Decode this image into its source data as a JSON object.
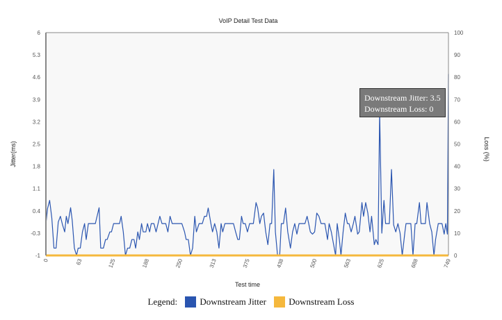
{
  "chart_data": {
    "type": "line",
    "title": "VoIP Detail Test Data",
    "xlabel": "Test time",
    "ylabel": "Jitter(ms)",
    "y2label": "Loss (%)",
    "xlim": [
      0,
      749
    ],
    "ylim": [
      -1,
      6
    ],
    "y2lim": [
      0,
      100
    ],
    "x_ticks": [
      "0",
      "63",
      "125",
      "188",
      "250",
      "313",
      "375",
      "438",
      "500",
      "563",
      "625",
      "688",
      "749"
    ],
    "y_ticks": [
      "-1",
      "-0.3",
      "0.4",
      "1.1",
      "1.8",
      "2.5",
      "3.2",
      "3.9",
      "4.6",
      "5.3",
      "6"
    ],
    "y2_ticks": [
      "0",
      "10",
      "20",
      "30",
      "40",
      "50",
      "60",
      "70",
      "80",
      "90",
      "100"
    ],
    "grid": false,
    "legend_position": "bottom",
    "series": [
      {
        "name": "Downstream Jitter",
        "color": "#2a55b0",
        "axis": "left",
        "points": [
          [
            0,
            0
          ],
          [
            3,
            0.47
          ],
          [
            7,
            0.73
          ],
          [
            11,
            0.18
          ],
          [
            15,
            -0.77
          ],
          [
            19,
            -0.77
          ],
          [
            23,
            0.05
          ],
          [
            27,
            0.23
          ],
          [
            31,
            -0.04
          ],
          [
            35,
            -0.26
          ],
          [
            38,
            0.23
          ],
          [
            41,
            0
          ],
          [
            46,
            0.5
          ],
          [
            49,
            0.1
          ],
          [
            53,
            -0.77
          ],
          [
            57,
            -1
          ],
          [
            60,
            -0.77
          ],
          [
            64,
            -0.77
          ],
          [
            68,
            -0.26
          ],
          [
            72,
            0
          ],
          [
            75,
            -0.5
          ],
          [
            79,
            0
          ],
          [
            92,
            0
          ],
          [
            99,
            0.5
          ],
          [
            102,
            -0.77
          ],
          [
            107,
            -0.77
          ],
          [
            111,
            -0.5
          ],
          [
            114,
            -0.5
          ],
          [
            119,
            -0.26
          ],
          [
            122,
            -0.26
          ],
          [
            126,
            0
          ],
          [
            137,
            0
          ],
          [
            140,
            0.23
          ],
          [
            144,
            -0.26
          ],
          [
            148,
            -1
          ],
          [
            152,
            -0.77
          ],
          [
            156,
            -0.77
          ],
          [
            160,
            -0.5
          ],
          [
            164,
            -0.5
          ],
          [
            167,
            -0.77
          ],
          [
            171,
            -0.26
          ],
          [
            174,
            -0.5
          ],
          [
            178,
            0
          ],
          [
            181,
            -0.26
          ],
          [
            186,
            -0.26
          ],
          [
            189,
            0
          ],
          [
            193,
            -0.26
          ],
          [
            196,
            0
          ],
          [
            201,
            0
          ],
          [
            205,
            -0.26
          ],
          [
            212,
            0.23
          ],
          [
            216,
            0
          ],
          [
            223,
            0
          ],
          [
            227,
            -0.26
          ],
          [
            231,
            0.23
          ],
          [
            235,
            0
          ],
          [
            253,
            0
          ],
          [
            258,
            -0.26
          ],
          [
            261,
            -0.5
          ],
          [
            265,
            -0.5
          ],
          [
            269,
            -1
          ],
          [
            273,
            -0.77
          ],
          [
            277,
            0.23
          ],
          [
            280,
            -0.26
          ],
          [
            285,
            0
          ],
          [
            291,
            0
          ],
          [
            295,
            0.23
          ],
          [
            299,
            0.23
          ],
          [
            302,
            0.49
          ],
          [
            307,
            0
          ],
          [
            310,
            -0.26
          ],
          [
            314,
            0
          ],
          [
            318,
            -0.26
          ],
          [
            322,
            -0.77
          ],
          [
            326,
            0
          ],
          [
            329,
            -0.26
          ],
          [
            333,
            0
          ],
          [
            349,
            0
          ],
          [
            353,
            -0.26
          ],
          [
            357,
            -0.5
          ],
          [
            360,
            -0.5
          ],
          [
            364,
            0.23
          ],
          [
            367,
            0
          ],
          [
            371,
            0
          ],
          [
            375,
            -0.26
          ],
          [
            379,
            0
          ],
          [
            386,
            0
          ],
          [
            391,
            0.66
          ],
          [
            394,
            0.49
          ],
          [
            398,
            0
          ],
          [
            401,
            0.23
          ],
          [
            405,
            0.33
          ],
          [
            409,
            -0.26
          ],
          [
            413,
            -0.66
          ],
          [
            417,
            0
          ],
          [
            420,
            0
          ],
          [
            424,
            1.7
          ],
          [
            427,
            -0.26
          ],
          [
            431,
            -1
          ],
          [
            435,
            -1
          ],
          [
            438,
            0
          ],
          [
            442,
            0
          ],
          [
            446,
            0.49
          ],
          [
            450,
            -0.26
          ],
          [
            455,
            -0.77
          ],
          [
            459,
            -0.26
          ],
          [
            463,
            0
          ],
          [
            467,
            -0.33
          ],
          [
            471,
            0
          ],
          [
            482,
            0
          ],
          [
            486,
            0.23
          ],
          [
            489,
            0
          ],
          [
            492,
            -0.26
          ],
          [
            496,
            -0.33
          ],
          [
            500,
            -0.26
          ],
          [
            504,
            0.33
          ],
          [
            508,
            0.23
          ],
          [
            512,
            0
          ],
          [
            519,
            0
          ],
          [
            524,
            -0.5
          ],
          [
            527,
            0
          ],
          [
            531,
            -0.26
          ],
          [
            539,
            -1
          ],
          [
            542,
            0
          ],
          [
            546,
            -0.5
          ],
          [
            549,
            -1
          ],
          [
            553,
            -0.26
          ],
          [
            557,
            0.33
          ],
          [
            561,
            0
          ],
          [
            564,
            0
          ],
          [
            568,
            -0.26
          ],
          [
            572,
            0
          ],
          [
            575,
            0.23
          ],
          [
            580,
            -0.33
          ],
          [
            583,
            -0.26
          ],
          [
            588,
            0.66
          ],
          [
            591,
            0.23
          ],
          [
            595,
            0.66
          ],
          [
            599,
            0.33
          ],
          [
            603,
            -0.26
          ],
          [
            606,
            0.23
          ],
          [
            611,
            -0.66
          ],
          [
            614,
            -0.5
          ],
          [
            618,
            -0.66
          ],
          [
            621,
            3.5
          ],
          [
            625,
            -0.3
          ],
          [
            629,
            0.73
          ],
          [
            632,
            0
          ],
          [
            639,
            0
          ],
          [
            643,
            1.7
          ],
          [
            647,
            -0.04
          ],
          [
            651,
            -0.26
          ],
          [
            655,
            0
          ],
          [
            659,
            -0.3
          ],
          [
            663,
            -1
          ],
          [
            668,
            -0.26
          ],
          [
            670,
            0
          ],
          [
            679,
            0
          ],
          [
            683,
            -1
          ],
          [
            687,
            0
          ],
          [
            690,
            0
          ],
          [
            695,
            0.66
          ],
          [
            698,
            0
          ],
          [
            706,
            0
          ],
          [
            709,
            0.66
          ],
          [
            714,
            0
          ],
          [
            718,
            -0.26
          ],
          [
            722,
            -1
          ],
          [
            725,
            -0.5
          ],
          [
            730,
            0
          ],
          [
            737,
            0
          ],
          [
            741,
            -0.33
          ],
          [
            744,
            0
          ],
          [
            747,
            -0.33
          ],
          [
            749,
            4.7
          ]
        ]
      },
      {
        "name": "Downstream Loss",
        "color": "#f5b83d",
        "axis": "right",
        "points": [
          [
            0,
            0
          ],
          [
            749,
            0
          ]
        ]
      }
    ],
    "legend_label": "Legend:",
    "tooltip": {
      "line1": "Downstream Jitter: 3.5",
      "line2": "Downstream Loss: 0"
    }
  }
}
